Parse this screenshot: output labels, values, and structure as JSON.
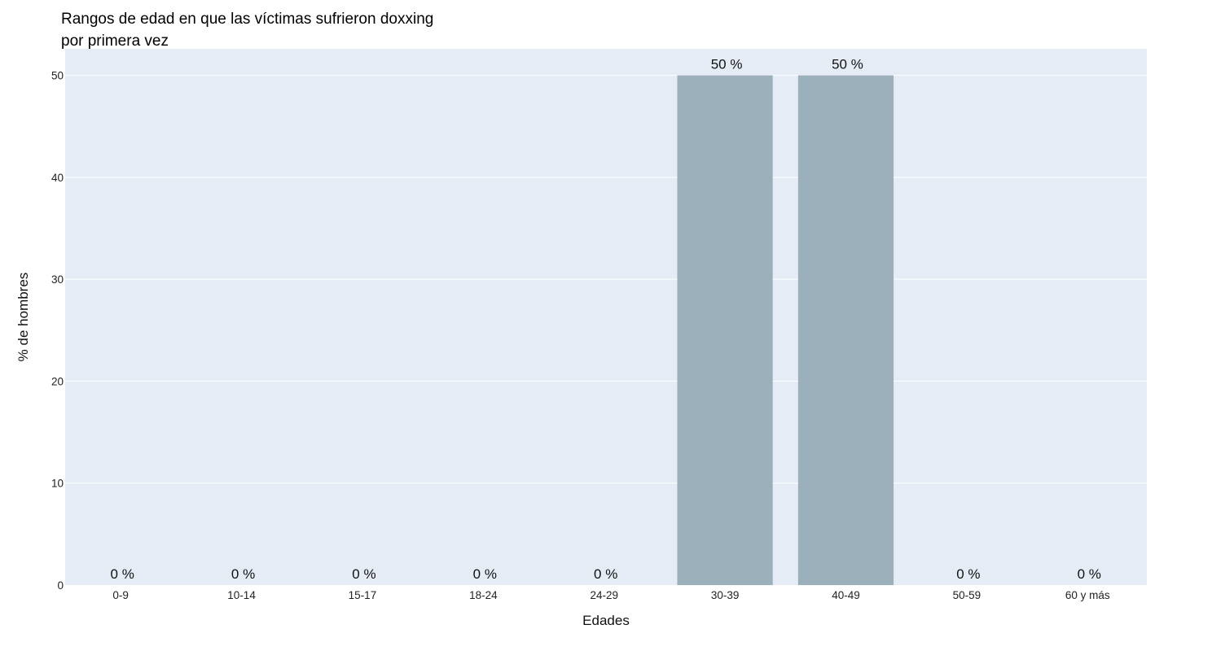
{
  "chart_data": {
    "type": "bar",
    "title": "Rangos de edad en que las víctimas sufrieron doxxing por primera vez",
    "xlabel": "Edades",
    "ylabel": "% de hombres",
    "categories": [
      "0-9",
      "10-14",
      "15-17",
      "18-24",
      "24-29",
      "30-39",
      "40-49",
      "50-59",
      "60 y más"
    ],
    "values": [
      0,
      0,
      0,
      0,
      0,
      50,
      50,
      0,
      0
    ],
    "data_labels": [
      "0 %",
      "0 %",
      "0 %",
      "0 %",
      "0 %",
      "50 %",
      "50 %",
      "0 %",
      "0 %"
    ],
    "yticks": [
      0,
      10,
      20,
      30,
      40,
      50
    ],
    "ylim": [
      0,
      52.6
    ],
    "grid": true,
    "bar_color": "#9cb0bc",
    "plot_background": "#e5ecf6",
    "gridline_color": "#ffffff"
  }
}
